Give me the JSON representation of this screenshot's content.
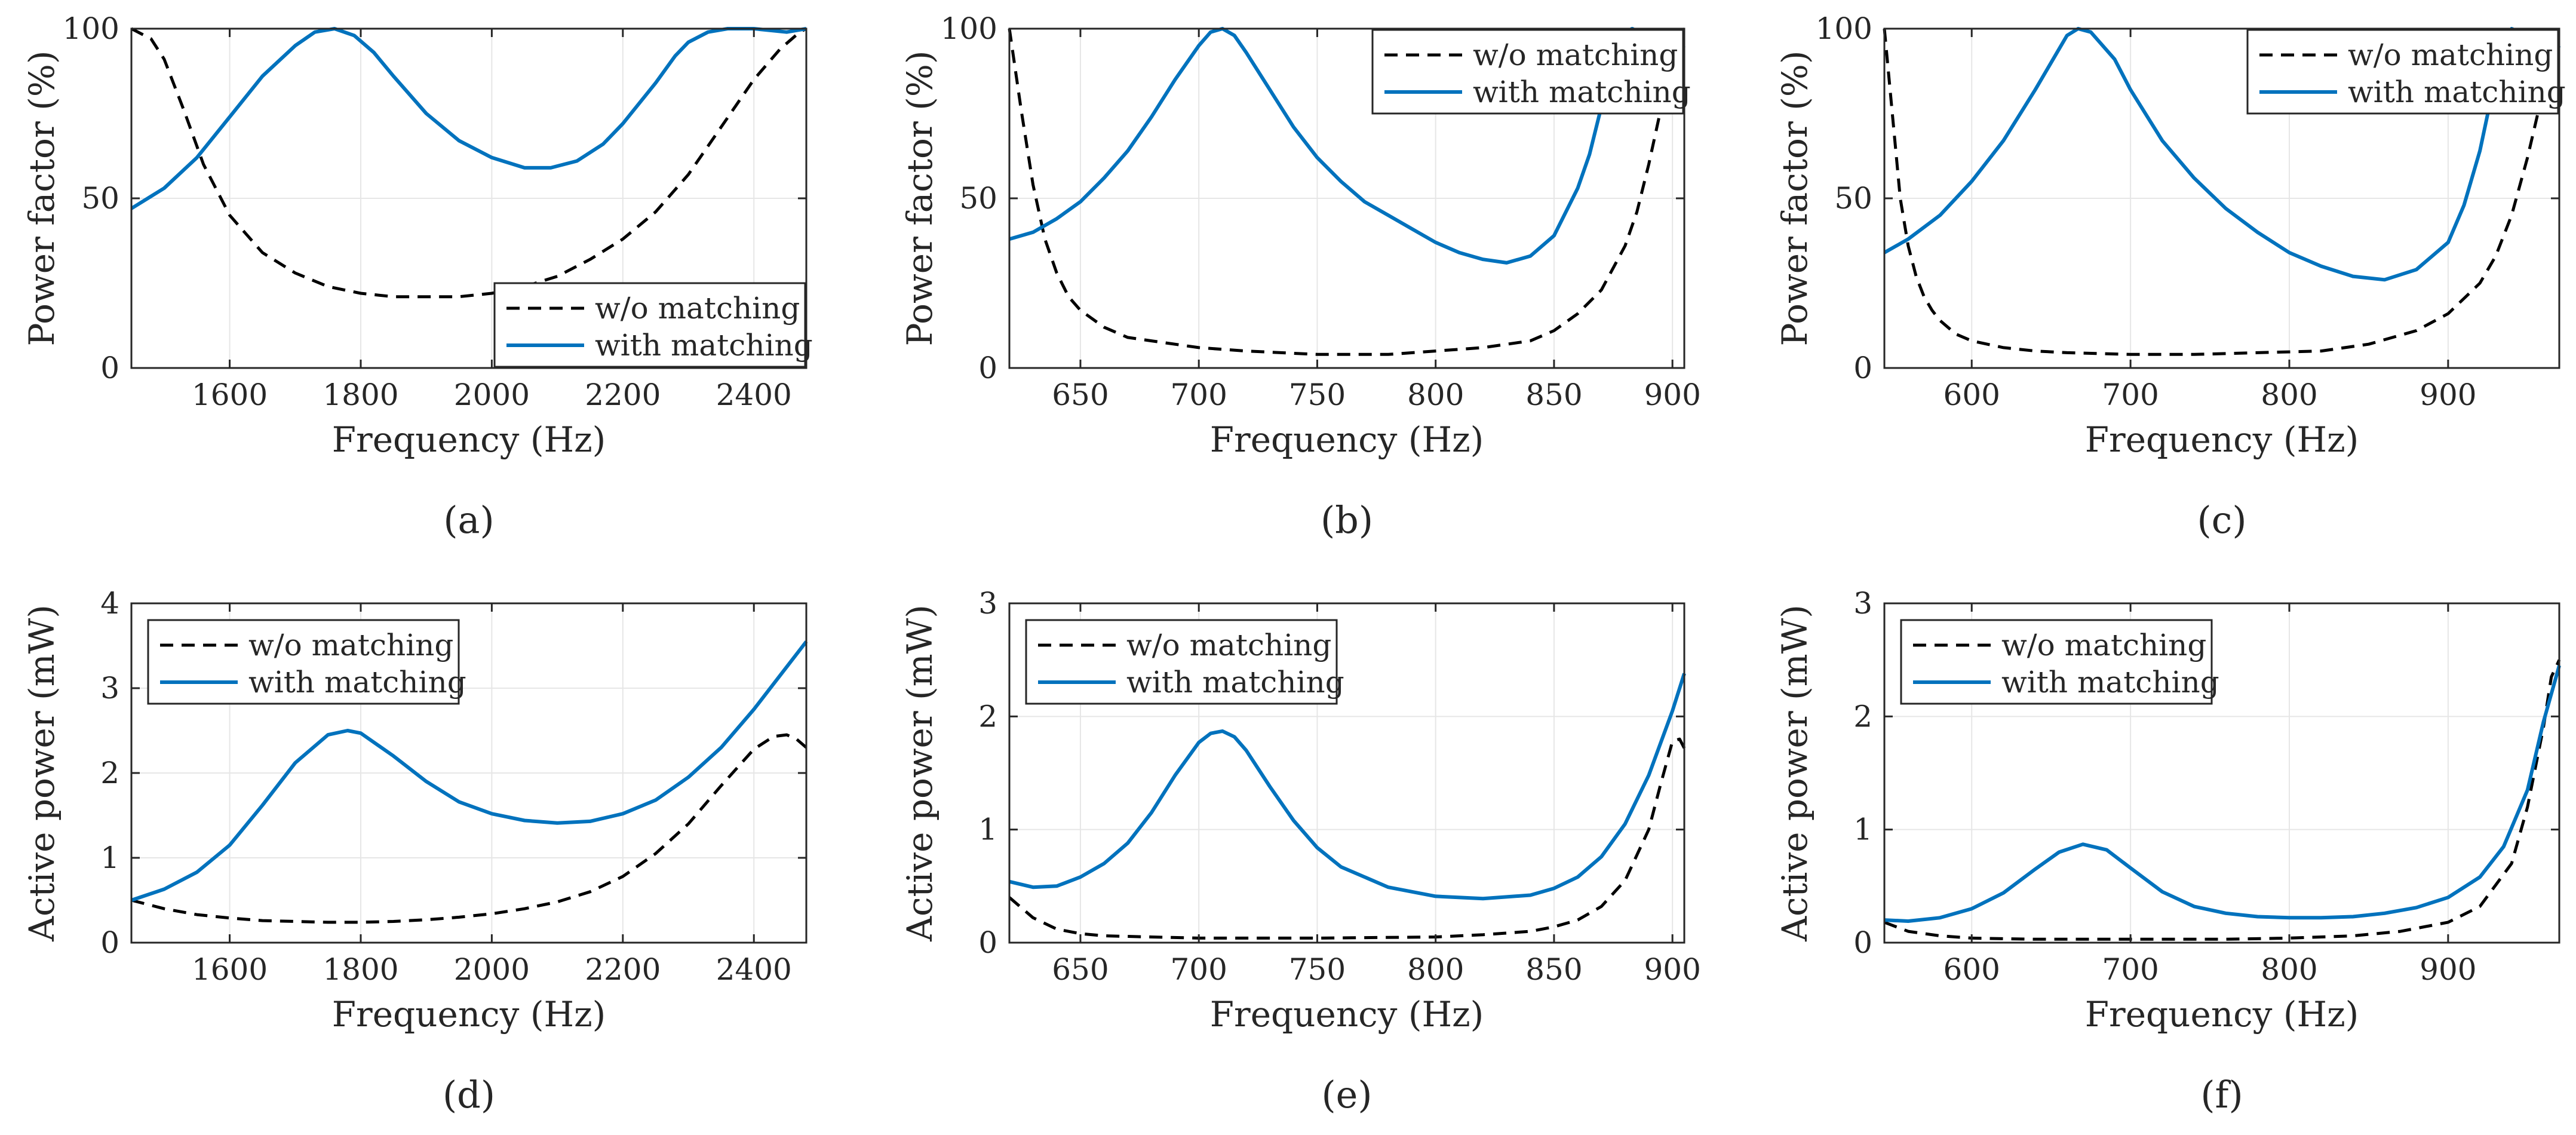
{
  "colors": {
    "with_matching": "#0072BD",
    "without_matching": "#000000",
    "grid": "#e6e6e6",
    "axes": "#262626"
  },
  "chart_data": [
    {
      "caption": "(a)",
      "type": "line",
      "xlabel": "Frequency (Hz)",
      "ylabel": "Power factor (%)",
      "xlim": [
        1450,
        2480
      ],
      "ylim": [
        0,
        100
      ],
      "xticks": [
        1600,
        1800,
        2000,
        2200,
        2400
      ],
      "yticks": [
        0,
        50,
        100
      ],
      "grid": true,
      "legend_position": "bottom-right",
      "series": [
        {
          "name": "w/o matching",
          "style": "dashed",
          "x": [
            1450,
            1480,
            1500,
            1530,
            1560,
            1600,
            1650,
            1700,
            1750,
            1800,
            1850,
            1900,
            1950,
            2000,
            2050,
            2100,
            2150,
            2200,
            2250,
            2300,
            2350,
            2400,
            2440,
            2470,
            2480
          ],
          "y": [
            100,
            97,
            91,
            76,
            60,
            45,
            34,
            28,
            24,
            22,
            21,
            21,
            21,
            22,
            24,
            27,
            32,
            38,
            46,
            57,
            71,
            85,
            94,
            99,
            100
          ]
        },
        {
          "name": "with matching",
          "style": "solid",
          "x": [
            1450,
            1500,
            1550,
            1600,
            1650,
            1700,
            1730,
            1760,
            1790,
            1820,
            1850,
            1900,
            1950,
            2000,
            2050,
            2090,
            2130,
            2170,
            2200,
            2250,
            2280,
            2300,
            2330,
            2360,
            2400,
            2450,
            2480
          ],
          "y": [
            47,
            53,
            62,
            74,
            86,
            95,
            99,
            100,
            98,
            93,
            86,
            75,
            67,
            62,
            59,
            59,
            61,
            66,
            72,
            84,
            92,
            96,
            99,
            100,
            100,
            99,
            100
          ]
        }
      ]
    },
    {
      "caption": "(b)",
      "type": "line",
      "xlabel": "Frequency (Hz)",
      "ylabel": "Power factor (%)",
      "xlim": [
        620,
        905
      ],
      "ylim": [
        0,
        100
      ],
      "xticks": [
        650,
        700,
        750,
        800,
        850,
        900
      ],
      "yticks": [
        0,
        50,
        100
      ],
      "grid": true,
      "legend_position": "top-right",
      "series": [
        {
          "name": "w/o matching",
          "style": "dashed",
          "x": [
            620,
            625,
            630,
            635,
            640,
            645,
            650,
            660,
            670,
            680,
            700,
            720,
            750,
            780,
            800,
            820,
            840,
            850,
            860,
            870,
            880,
            885,
            890,
            895,
            900,
            903,
            905
          ],
          "y": [
            100,
            76,
            54,
            38,
            28,
            21,
            17,
            12,
            9,
            8,
            6,
            5,
            4,
            4,
            5,
            6,
            8,
            11,
            16,
            23,
            36,
            46,
            60,
            76,
            93,
            99,
            100
          ]
        },
        {
          "name": "with matching",
          "style": "solid",
          "x": [
            620,
            630,
            640,
            650,
            660,
            670,
            680,
            690,
            700,
            705,
            710,
            715,
            720,
            730,
            740,
            750,
            760,
            770,
            780,
            790,
            800,
            810,
            820,
            830,
            840,
            850,
            860,
            865,
            870,
            875,
            880,
            883,
            886,
            890,
            895,
            900,
            905
          ],
          "y": [
            38,
            40,
            44,
            49,
            56,
            64,
            74,
            85,
            95,
            99,
            100,
            98,
            93,
            82,
            71,
            62,
            55,
            49,
            45,
            41,
            37,
            34,
            32,
            31,
            33,
            39,
            53,
            63,
            77,
            91,
            99,
            100,
            99,
            95,
            92,
            92,
            95
          ]
        }
      ]
    },
    {
      "caption": "(c)",
      "type": "line",
      "xlabel": "Frequency (Hz)",
      "ylabel": "Power factor (%)",
      "xlim": [
        545,
        970
      ],
      "ylim": [
        0,
        100
      ],
      "xticks": [
        600,
        700,
        800,
        900
      ],
      "yticks": [
        0,
        50,
        100
      ],
      "grid": true,
      "legend_position": "top-right",
      "series": [
        {
          "name": "w/o matching",
          "style": "dashed",
          "x": [
            545,
            550,
            555,
            560,
            565,
            570,
            575,
            580,
            590,
            600,
            620,
            640,
            660,
            700,
            740,
            780,
            820,
            850,
            880,
            900,
            920,
            930,
            940,
            950,
            960,
            965,
            970
          ],
          "y": [
            100,
            75,
            50,
            36,
            27,
            21,
            17,
            14,
            10,
            8,
            6,
            5,
            4.5,
            4,
            4,
            4.5,
            5,
            7,
            11,
            16,
            25,
            33,
            45,
            62,
            82,
            94,
            100
          ]
        },
        {
          "name": "with matching",
          "style": "solid",
          "x": [
            545,
            560,
            580,
            600,
            620,
            640,
            650,
            660,
            667,
            675,
            690,
            700,
            720,
            740,
            760,
            780,
            800,
            820,
            840,
            860,
            880,
            900,
            910,
            920,
            930,
            935,
            940,
            945,
            950,
            955,
            960,
            965,
            970
          ],
          "y": [
            34,
            38,
            45,
            55,
            67,
            82,
            90,
            98,
            100,
            99,
            91,
            82,
            67,
            56,
            47,
            40,
            34,
            30,
            27,
            26,
            29,
            37,
            48,
            64,
            86,
            96,
            100,
            99,
            95,
            92,
            91,
            92,
            95
          ]
        }
      ]
    },
    {
      "caption": "(d)",
      "type": "line",
      "xlabel": "Frequency (Hz)",
      "ylabel": "Active power (mW)",
      "xlim": [
        1450,
        2480
      ],
      "ylim": [
        0,
        4
      ],
      "xticks": [
        1600,
        1800,
        2000,
        2200,
        2400
      ],
      "yticks": [
        0,
        1,
        2,
        3,
        4
      ],
      "grid": true,
      "legend_position": "top-left",
      "series": [
        {
          "name": "w/o matching",
          "style": "dashed",
          "x": [
            1450,
            1500,
            1550,
            1600,
            1650,
            1700,
            1750,
            1800,
            1850,
            1900,
            1950,
            2000,
            2050,
            2100,
            2150,
            2200,
            2250,
            2300,
            2350,
            2400,
            2430,
            2450,
            2465,
            2480
          ],
          "y": [
            0.5,
            0.4,
            0.33,
            0.29,
            0.26,
            0.25,
            0.24,
            0.24,
            0.25,
            0.27,
            0.3,
            0.34,
            0.4,
            0.48,
            0.6,
            0.78,
            1.05,
            1.4,
            1.85,
            2.28,
            2.43,
            2.45,
            2.4,
            2.3
          ]
        },
        {
          "name": "with matching",
          "style": "solid",
          "x": [
            1450,
            1500,
            1550,
            1600,
            1650,
            1700,
            1750,
            1780,
            1800,
            1850,
            1900,
            1950,
            2000,
            2050,
            2100,
            2150,
            2200,
            2250,
            2300,
            2350,
            2400,
            2450,
            2480
          ],
          "y": [
            0.5,
            0.63,
            0.83,
            1.15,
            1.62,
            2.12,
            2.45,
            2.5,
            2.47,
            2.2,
            1.9,
            1.66,
            1.52,
            1.44,
            1.41,
            1.43,
            1.52,
            1.68,
            1.95,
            2.3,
            2.75,
            3.25,
            3.55
          ]
        }
      ]
    },
    {
      "caption": "(e)",
      "type": "line",
      "xlabel": "Frequency (Hz)",
      "ylabel": "Active power (mW)",
      "xlim": [
        620,
        905
      ],
      "ylim": [
        0,
        3
      ],
      "xticks": [
        650,
        700,
        750,
        800,
        850,
        900
      ],
      "yticks": [
        0,
        1,
        2,
        3
      ],
      "grid": true,
      "legend_position": "top-left",
      "series": [
        {
          "name": "w/o matching",
          "style": "dashed",
          "x": [
            620,
            630,
            640,
            650,
            660,
            680,
            700,
            750,
            800,
            820,
            840,
            850,
            860,
            870,
            880,
            890,
            895,
            900,
            903,
            905
          ],
          "y": [
            0.4,
            0.22,
            0.12,
            0.08,
            0.06,
            0.05,
            0.04,
            0.04,
            0.05,
            0.07,
            0.1,
            0.14,
            0.2,
            0.32,
            0.55,
            1.0,
            1.4,
            1.78,
            1.8,
            1.72
          ]
        },
        {
          "name": "with matching",
          "style": "solid",
          "x": [
            620,
            630,
            640,
            650,
            660,
            670,
            680,
            690,
            700,
            705,
            710,
            715,
            720,
            730,
            740,
            750,
            760,
            780,
            800,
            820,
            840,
            850,
            860,
            870,
            880,
            890,
            900,
            905
          ],
          "y": [
            0.54,
            0.49,
            0.5,
            0.58,
            0.7,
            0.88,
            1.15,
            1.48,
            1.77,
            1.85,
            1.87,
            1.82,
            1.7,
            1.38,
            1.08,
            0.84,
            0.67,
            0.49,
            0.41,
            0.39,
            0.42,
            0.48,
            0.58,
            0.76,
            1.05,
            1.48,
            2.05,
            2.38
          ]
        }
      ]
    },
    {
      "caption": "(f)",
      "type": "line",
      "xlabel": "Frequency (Hz)",
      "ylabel": "Active power (mW)",
      "xlim": [
        545,
        970
      ],
      "ylim": [
        0,
        3
      ],
      "xticks": [
        600,
        700,
        800,
        900
      ],
      "yticks": [
        0,
        1,
        2,
        3
      ],
      "grid": true,
      "legend_position": "top-left",
      "series": [
        {
          "name": "w/o matching",
          "style": "dashed",
          "x": [
            545,
            560,
            580,
            600,
            640,
            700,
            760,
            800,
            840,
            870,
            900,
            920,
            940,
            950,
            960,
            965,
            970
          ],
          "y": [
            0.18,
            0.1,
            0.06,
            0.04,
            0.03,
            0.03,
            0.03,
            0.04,
            0.06,
            0.1,
            0.18,
            0.32,
            0.7,
            1.2,
            1.9,
            2.35,
            2.5
          ]
        },
        {
          "name": "with matching",
          "style": "solid",
          "x": [
            545,
            560,
            580,
            600,
            620,
            640,
            655,
            670,
            685,
            700,
            720,
            740,
            760,
            780,
            800,
            820,
            840,
            860,
            880,
            900,
            920,
            935,
            950,
            960,
            970
          ],
          "y": [
            0.2,
            0.19,
            0.22,
            0.3,
            0.44,
            0.65,
            0.8,
            0.87,
            0.82,
            0.66,
            0.45,
            0.32,
            0.26,
            0.23,
            0.22,
            0.22,
            0.23,
            0.26,
            0.31,
            0.4,
            0.58,
            0.85,
            1.35,
            1.95,
            2.45
          ]
        }
      ]
    }
  ]
}
